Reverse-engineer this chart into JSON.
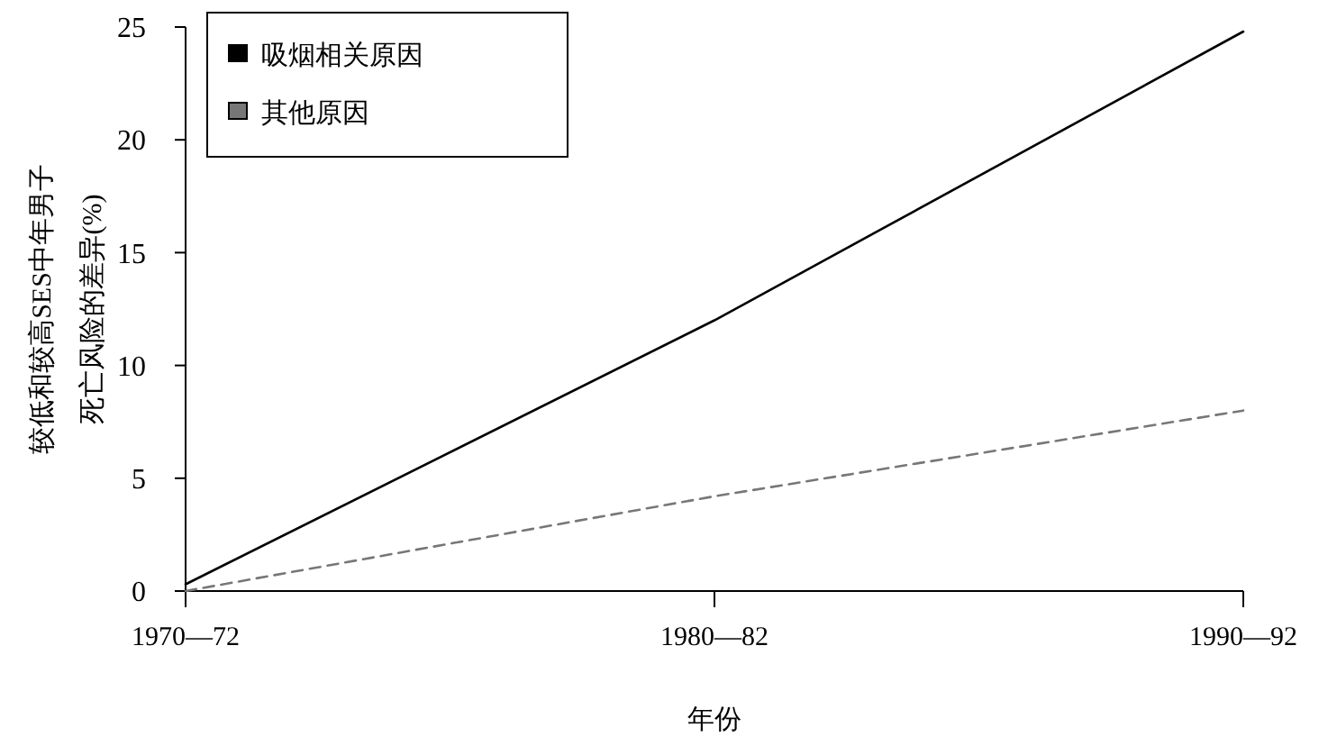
{
  "chart_data": {
    "type": "line",
    "xlabel": "年份",
    "ylabel": "较低和较高SES中年男子死亡风险的差异(%)",
    "categories": [
      "1970—72",
      "1980—82",
      "1990—92"
    ],
    "series": [
      {
        "name": "吸烟相关原因",
        "color": "#000000",
        "line_style": "solid",
        "values": [
          0.3,
          12,
          24.8
        ]
      },
      {
        "name": "其他原因",
        "color": "#777777",
        "line_style": "dashed",
        "values": [
          0,
          4.2,
          8
        ]
      }
    ],
    "ylim": [
      0,
      25
    ],
    "yticks": [
      0,
      5,
      10,
      15,
      20,
      25
    ],
    "grid": false,
    "legend": "top left",
    "marker": "none"
  }
}
